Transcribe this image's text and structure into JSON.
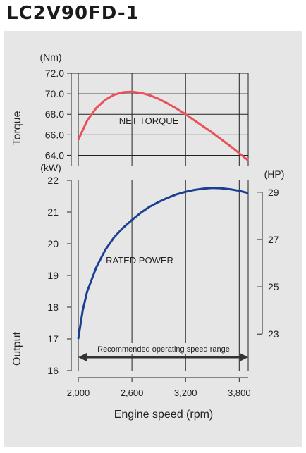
{
  "title": "LC2V90FD-1",
  "chart_data": {
    "type": "line",
    "xlabel": "Engine speed (rpm)",
    "xlim": [
      2000,
      3900
    ],
    "x_ticks": [
      2000,
      2600,
      3200,
      3800
    ],
    "x_tick_labels": [
      "2,000",
      "2,600",
      "3,200",
      "3,800"
    ],
    "torque_panel": {
      "ylabel": "Torque",
      "unit": "(Nm)",
      "ylim": [
        63,
        72
      ],
      "y_ticks": [
        64,
        66,
        68,
        70,
        72
      ],
      "y_tick_labels": [
        "64.0",
        "66.0",
        "68.0",
        "70.0",
        "72.0"
      ],
      "series": [
        {
          "name": "NET TORQUE",
          "color": "#e9505a",
          "x": [
            2000,
            2100,
            2200,
            2300,
            2400,
            2500,
            2600,
            2700,
            2800,
            2900,
            3000,
            3100,
            3200,
            3300,
            3400,
            3500,
            3600,
            3700,
            3800,
            3900
          ],
          "y": [
            65.5,
            67.4,
            68.6,
            69.4,
            69.9,
            70.15,
            70.2,
            70.1,
            69.85,
            69.5,
            69.05,
            68.55,
            68.0,
            67.4,
            66.8,
            66.2,
            65.55,
            64.9,
            64.2,
            63.5
          ]
        }
      ]
    },
    "power_panel": {
      "ylabel": "Output",
      "unit_left": "(kW)",
      "unit_right": "(HP)",
      "ylim": [
        16,
        22
      ],
      "y_ticks": [
        16,
        17,
        18,
        19,
        20,
        21,
        22
      ],
      "y_tick_labels": [
        "16",
        "17",
        "18",
        "19",
        "20",
        "21",
        "22"
      ],
      "y2_ticks": [
        23,
        25,
        27,
        29
      ],
      "y2_tick_labels": [
        "23",
        "25",
        "27",
        "29"
      ],
      "series": [
        {
          "name": "RATED POWER",
          "color": "#1c3f94",
          "x": [
            2000,
            2050,
            2100,
            2200,
            2300,
            2400,
            2500,
            2600,
            2700,
            2800,
            2900,
            3000,
            3100,
            3200,
            3300,
            3400,
            3500,
            3600,
            3700,
            3800,
            3900
          ],
          "y": [
            17.0,
            17.9,
            18.5,
            19.25,
            19.8,
            20.2,
            20.5,
            20.75,
            20.98,
            21.17,
            21.32,
            21.45,
            21.56,
            21.64,
            21.7,
            21.74,
            21.76,
            21.75,
            21.72,
            21.67,
            21.6
          ]
        }
      ]
    },
    "annotation": {
      "text": "Recommended operating speed range",
      "x_range": [
        2000,
        3900
      ]
    },
    "colors": {
      "panel_bg": "#e6e6e6",
      "grid": "#222222",
      "torque": "#e9505a",
      "power": "#1c3f94"
    }
  }
}
